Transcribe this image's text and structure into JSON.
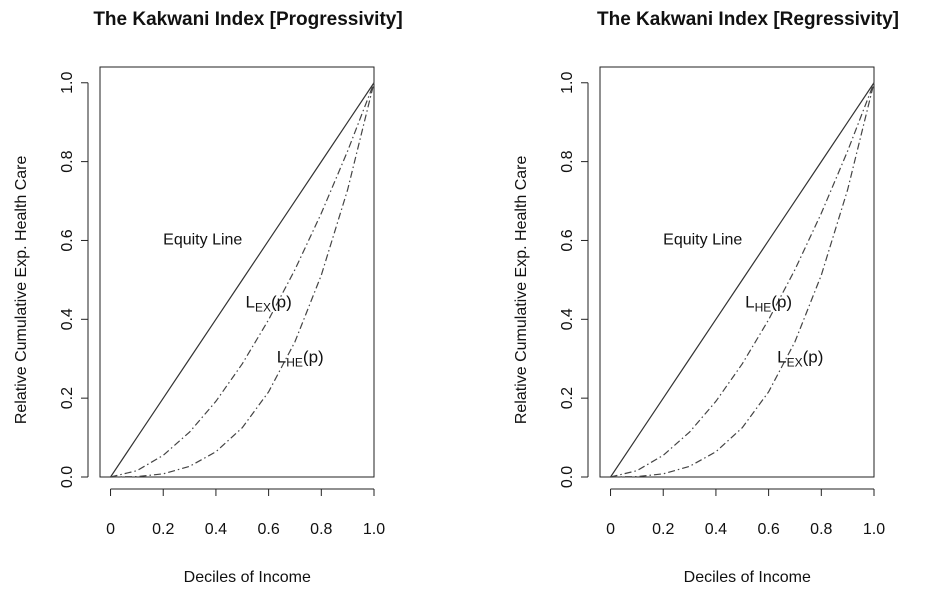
{
  "chart_data": [
    {
      "type": "line",
      "title": "The Kakwani Index [Progressivity]",
      "xlabel": "Deciles of Income",
      "ylabel": "Relative Cumulative Exp. Health Care",
      "x": [
        0,
        0.1,
        0.2,
        0.3,
        0.4,
        0.5,
        0.6,
        0.7,
        0.8,
        0.9,
        1
      ],
      "xlim": [
        -0.04,
        1
      ],
      "ylim": [
        0,
        1.04
      ],
      "xticks": [
        0,
        0.2,
        0.4,
        0.6,
        0.8,
        {
          "value": 1,
          "label": "1.0"
        }
      ],
      "yticks": [
        {
          "value": 0,
          "label": "0.0"
        },
        0.2,
        0.4,
        0.6,
        0.8,
        {
          "value": 1,
          "label": "1.0"
        }
      ],
      "series": [
        {
          "label": "Equity Line",
          "color": "#333333",
          "style": "solid",
          "values": [
            0,
            0.1,
            0.2,
            0.3,
            0.4,
            0.5,
            0.6,
            0.7,
            0.8,
            0.9,
            1
          ]
        },
        {
          "label": {
            "main": "L",
            "sub": "EX",
            "tail": "(p)"
          },
          "color": "#444444",
          "style": "dashdot",
          "values": [
            0,
            0.016,
            0.055,
            0.114,
            0.192,
            0.287,
            0.399,
            0.526,
            0.669,
            0.827,
            1
          ]
        },
        {
          "label": {
            "main": "L",
            "sub": "HE",
            "tail": "(p)"
          },
          "color": "#444444",
          "style": "dashdot",
          "values": [
            0,
            0.001,
            0.008,
            0.027,
            0.064,
            0.125,
            0.216,
            0.343,
            0.512,
            0.729,
            1
          ]
        }
      ]
    },
    {
      "type": "line",
      "title": "The Kakwani Index [Regressivity]",
      "xlabel": "Deciles of Income",
      "ylabel": "Relative Cumulative Exp. Health Care",
      "x": [
        0,
        0.1,
        0.2,
        0.3,
        0.4,
        0.5,
        0.6,
        0.7,
        0.8,
        0.9,
        1
      ],
      "xlim": [
        -0.04,
        1
      ],
      "ylim": [
        0,
        1.04
      ],
      "xticks": [
        0,
        0.2,
        0.4,
        0.6,
        0.8,
        {
          "value": 1,
          "label": "1.0"
        }
      ],
      "yticks": [
        {
          "value": 0,
          "label": "0.0"
        },
        0.2,
        0.4,
        0.6,
        0.8,
        {
          "value": 1,
          "label": "1.0"
        }
      ],
      "series": [
        {
          "label": "Equity Line",
          "color": "#333333",
          "style": "solid",
          "values": [
            0,
            0.1,
            0.2,
            0.3,
            0.4,
            0.5,
            0.6,
            0.7,
            0.8,
            0.9,
            1
          ]
        },
        {
          "label": {
            "main": "L",
            "sub": "HE",
            "tail": "(p)"
          },
          "color": "#444444",
          "style": "dashdot",
          "values": [
            0,
            0.016,
            0.055,
            0.114,
            0.192,
            0.287,
            0.399,
            0.526,
            0.669,
            0.827,
            1
          ]
        },
        {
          "label": {
            "main": "L",
            "sub": "EX",
            "tail": "(p)"
          },
          "color": "#444444",
          "style": "dashdot",
          "values": [
            0,
            0.001,
            0.008,
            0.027,
            0.064,
            0.125,
            0.216,
            0.343,
            0.512,
            0.729,
            1
          ]
        }
      ]
    }
  ]
}
